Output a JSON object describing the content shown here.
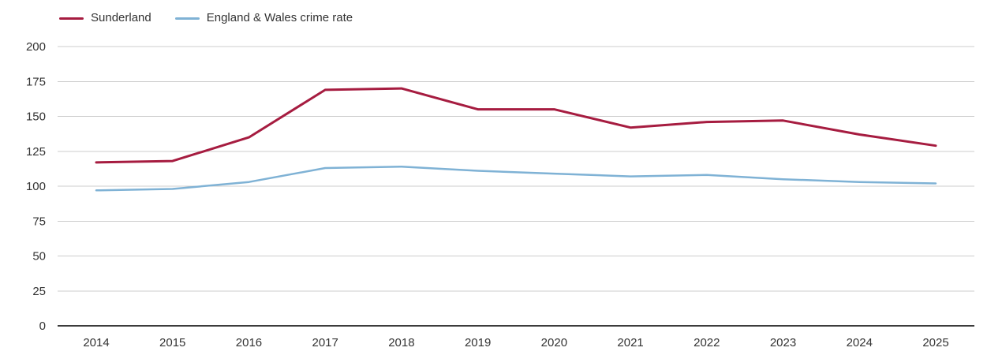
{
  "chart_data": {
    "type": "line",
    "x": [
      2014,
      2015,
      2016,
      2017,
      2018,
      2019,
      2020,
      2021,
      2022,
      2023,
      2024,
      2025
    ],
    "series": [
      {
        "name": "Sunderland",
        "color": "#a61c40",
        "stroke_width": 3,
        "values": [
          117,
          118,
          135,
          169,
          170,
          155,
          155,
          142,
          146,
          147,
          137,
          129
        ]
      },
      {
        "name": "England & Wales crime rate",
        "color": "#7fb2d5",
        "stroke_width": 2.5,
        "values": [
          97,
          98,
          103,
          113,
          114,
          111,
          109,
          107,
          108,
          105,
          103,
          102
        ]
      }
    ],
    "title": "",
    "xlabel": "",
    "ylabel": "",
    "ylim": [
      0,
      200
    ],
    "ytick_step": 25,
    "yticks": [
      0,
      25,
      50,
      75,
      100,
      125,
      150,
      175,
      200
    ],
    "grid": true,
    "legend_position": "top-left"
  },
  "colors": {
    "grid": "#cccccc",
    "axis": "#3c3c3c",
    "text": "#333333",
    "background": "#ffffff"
  }
}
